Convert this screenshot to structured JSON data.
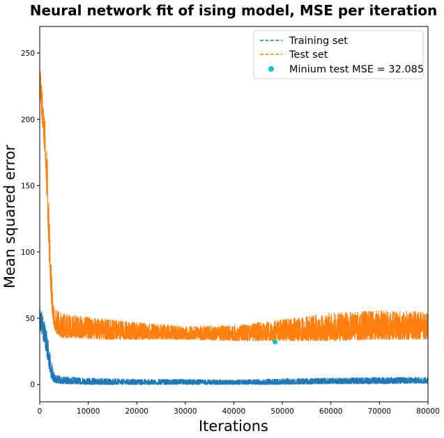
{
  "chart_data": {
    "type": "line",
    "title": "Neural network fit of ising model, MSE per iteration",
    "xlabel": "Iterations",
    "ylabel": "Mean squared error",
    "xlim": [
      0,
      80000
    ],
    "ylim": [
      -13,
      270
    ],
    "xticks": [
      0,
      10000,
      20000,
      30000,
      40000,
      50000,
      60000,
      70000,
      80000
    ],
    "yticks": [
      0,
      50,
      100,
      150,
      200,
      250
    ],
    "grid": false,
    "legend_position": "upper right",
    "series": [
      {
        "name": "Training set",
        "color": "#1f77b4",
        "style": "dashed",
        "envelope": {
          "x": [
            0,
            300,
            800,
            1300,
            1800,
            2300,
            2800,
            3500,
            5000,
            10000,
            20000,
            30000,
            40000,
            50000,
            60000,
            70000,
            80000
          ],
          "upper": [
            60,
            58,
            52,
            43,
            33,
            20,
            10,
            7,
            6,
            5,
            4,
            4,
            3.5,
            4.5,
            5,
            5.5,
            5.5
          ],
          "lower": [
            40,
            38,
            32,
            24,
            14,
            5,
            2,
            1,
            0.5,
            0,
            0,
            0,
            0,
            0,
            0.5,
            0.5,
            1
          ]
        }
      },
      {
        "name": "Test set",
        "color": "#ff7f0e",
        "style": "dashed",
        "envelope": {
          "x": [
            0,
            300,
            700,
            1200,
            1600,
            2000,
            2400,
            2800,
            3200,
            4000,
            5000,
            8000,
            12000,
            20000,
            30000,
            40000,
            48000,
            55000,
            60000,
            70000,
            80000
          ],
          "upper": [
            245,
            232,
            212,
            195,
            170,
            130,
            90,
            65,
            58,
            55,
            53,
            52,
            50,
            47,
            44,
            45,
            48,
            52,
            54,
            56,
            55
          ],
          "lower": [
            225,
            205,
            190,
            165,
            125,
            90,
            60,
            45,
            40,
            36,
            35,
            35,
            34,
            34,
            34,
            33,
            33,
            33,
            33,
            34,
            34
          ]
        }
      },
      {
        "name": "Minium test MSE = 32.085",
        "color": "#17becf",
        "style": "marker",
        "points": [
          {
            "x": 48500,
            "y": 32.085
          }
        ]
      }
    ]
  }
}
